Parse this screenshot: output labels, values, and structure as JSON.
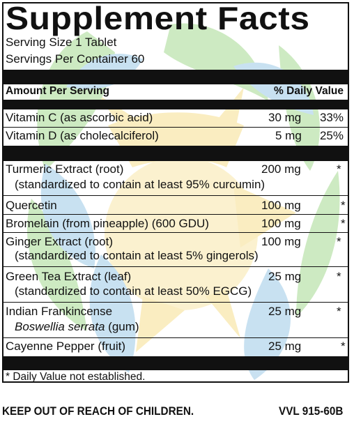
{
  "title": "Supplement Facts",
  "serving_size": "Serving Size 1 Tablet",
  "servings_per_container": "Servings Per Container 60",
  "header": {
    "amount_label": "Amount Per Serving",
    "dv_label": "% Daily Value"
  },
  "vitamins": [
    {
      "name": "Vitamin C (as ascorbic acid)",
      "amount": "30 mg",
      "dv": "33%"
    },
    {
      "name": "Vitamin D (as cholecalciferol)",
      "amount": "5 mg",
      "dv": "25%"
    }
  ],
  "ingredients": [
    {
      "name": "Turmeric Extract (root)",
      "sub": "(standardized to contain at least 95% curcumin)",
      "amount": "200 mg",
      "dv": "*"
    },
    {
      "name": "Quercetin",
      "sub": "",
      "amount": "100 mg",
      "dv": "*"
    },
    {
      "name": "Bromelain (from pineapple) (600 GDU)",
      "sub": "",
      "amount": "100 mg",
      "dv": "*"
    },
    {
      "name": "Ginger Extract (root)",
      "sub": "(standardized to contain at least 5% gingerols)",
      "amount": "100 mg",
      "dv": "*"
    },
    {
      "name": "Green Tea Extract (leaf)",
      "sub": "(standardized to contain at least 50% EGCG)",
      "amount": "25 mg",
      "dv": "*"
    },
    {
      "name": "Indian Frankincense",
      "sub_italic": "Boswellia serrata",
      "sub_rest": " (gum)",
      "amount": "25 mg",
      "dv": "*"
    },
    {
      "name": "Cayenne Pepper (fruit)",
      "sub": "",
      "amount": "25 mg",
      "dv": "*"
    }
  ],
  "footnote": "* Daily Value not established.",
  "warning": "KEEP OUT OF REACH OF CHILDREN.",
  "code": "VVL 915-60B",
  "colors": {
    "ink": "#111111",
    "leaf_green": "#9fd48a",
    "sun_yellow": "#f7df8f",
    "water_blue": "#9cc9e6"
  }
}
